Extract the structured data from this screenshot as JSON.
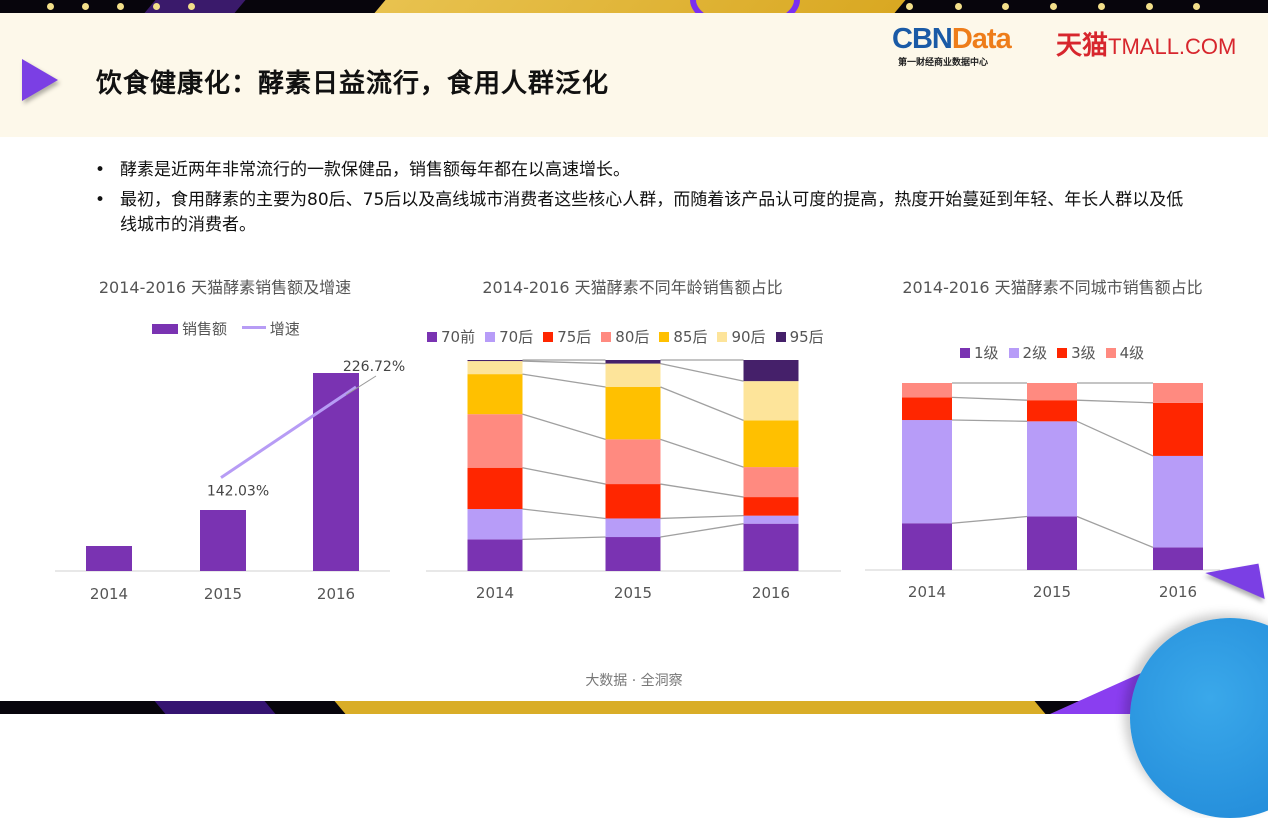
{
  "header": {
    "title": "饮食健康化：酵素日益流行，食用人群泛化",
    "logo_cbn_main": "CBN",
    "logo_cbn_data": "Data",
    "logo_cbn_sub": "第一财经商业数据中心",
    "logo_tmall_cn": "天猫",
    "logo_tmall_en": "TMALL.COM"
  },
  "bullets": [
    {
      "symbol": "•",
      "text": "酵素是近两年非常流行的一款保健品，销售额每年都在以高速增长。"
    },
    {
      "symbol": "•",
      "text": "最初，食用酵素的主要为80后、75后以及高线城市消费者这些核心人群，而随着该产品认可度的提高，热度开始蔓延到年轻、年长人群以及低线城市的消费者。"
    }
  ],
  "footer": "大数据 · 全洞察",
  "chart_data": [
    {
      "type": "bar",
      "title": "2014-2016 天猫酵素销售额及增速",
      "categories": [
        "2014",
        "2015",
        "2016"
      ],
      "series": [
        {
          "name": "销售额",
          "kind": "bar",
          "color": "#7a33b2",
          "values": [
            25,
            61,
            198
          ],
          "unit": "relative index (no axis shown)"
        },
        {
          "name": "增速",
          "kind": "line",
          "color": "#b79cf5",
          "values": [
            null,
            142.03,
            226.72
          ],
          "labels": [
            "",
            "142.03%",
            "226.72%"
          ]
        }
      ],
      "xlabel": "",
      "ylabel": "",
      "grid": false,
      "legend": "top"
    },
    {
      "type": "bar",
      "stacked": true,
      "percent": true,
      "title": "2014-2016 天猫酵素不同年龄销售额占比",
      "categories": [
        "2014",
        "2015",
        "2016"
      ],
      "series": [
        {
          "name": "70前",
          "color": "#7a33b2",
          "values": [
            15.0,
            16.1,
            22.4
          ]
        },
        {
          "name": "70后",
          "color": "#b79cf8",
          "values": [
            14.4,
            8.8,
            3.8
          ]
        },
        {
          "name": "75后",
          "color": "#ff2600",
          "values": [
            19.6,
            16.3,
            8.8
          ]
        },
        {
          "name": "80后",
          "color": "#ff8a80",
          "values": [
            25.4,
            21.2,
            14.2
          ]
        },
        {
          "name": "85后",
          "color": "#ffc000",
          "values": [
            19.0,
            24.8,
            22.1
          ]
        },
        {
          "name": "90后",
          "color": "#fde49a",
          "values": [
            6.2,
            11.1,
            18.6
          ]
        },
        {
          "name": "95后",
          "color": "#45206a",
          "values": [
            0.5,
            1.7,
            10.0
          ]
        }
      ],
      "ylim": [
        0,
        100
      ],
      "grid": false,
      "legend": "top"
    },
    {
      "type": "bar",
      "stacked": true,
      "percent": true,
      "title": "2014-2016 天猫酵素不同城市销售额占比",
      "categories": [
        "2014",
        "2015",
        "2016"
      ],
      "series": [
        {
          "name": "1级",
          "color": "#7a33b2",
          "values": [
            25.0,
            28.6,
            12.1
          ]
        },
        {
          "name": "2级",
          "color": "#b79cf8",
          "values": [
            55.2,
            50.9,
            48.9
          ]
        },
        {
          "name": "3级",
          "color": "#ff2600",
          "values": [
            12.1,
            11.3,
            28.4
          ]
        },
        {
          "name": "4级",
          "color": "#ff8a80",
          "values": [
            7.7,
            9.2,
            10.6
          ]
        }
      ],
      "ylim": [
        0,
        100
      ],
      "grid": false,
      "legend": "top"
    }
  ]
}
